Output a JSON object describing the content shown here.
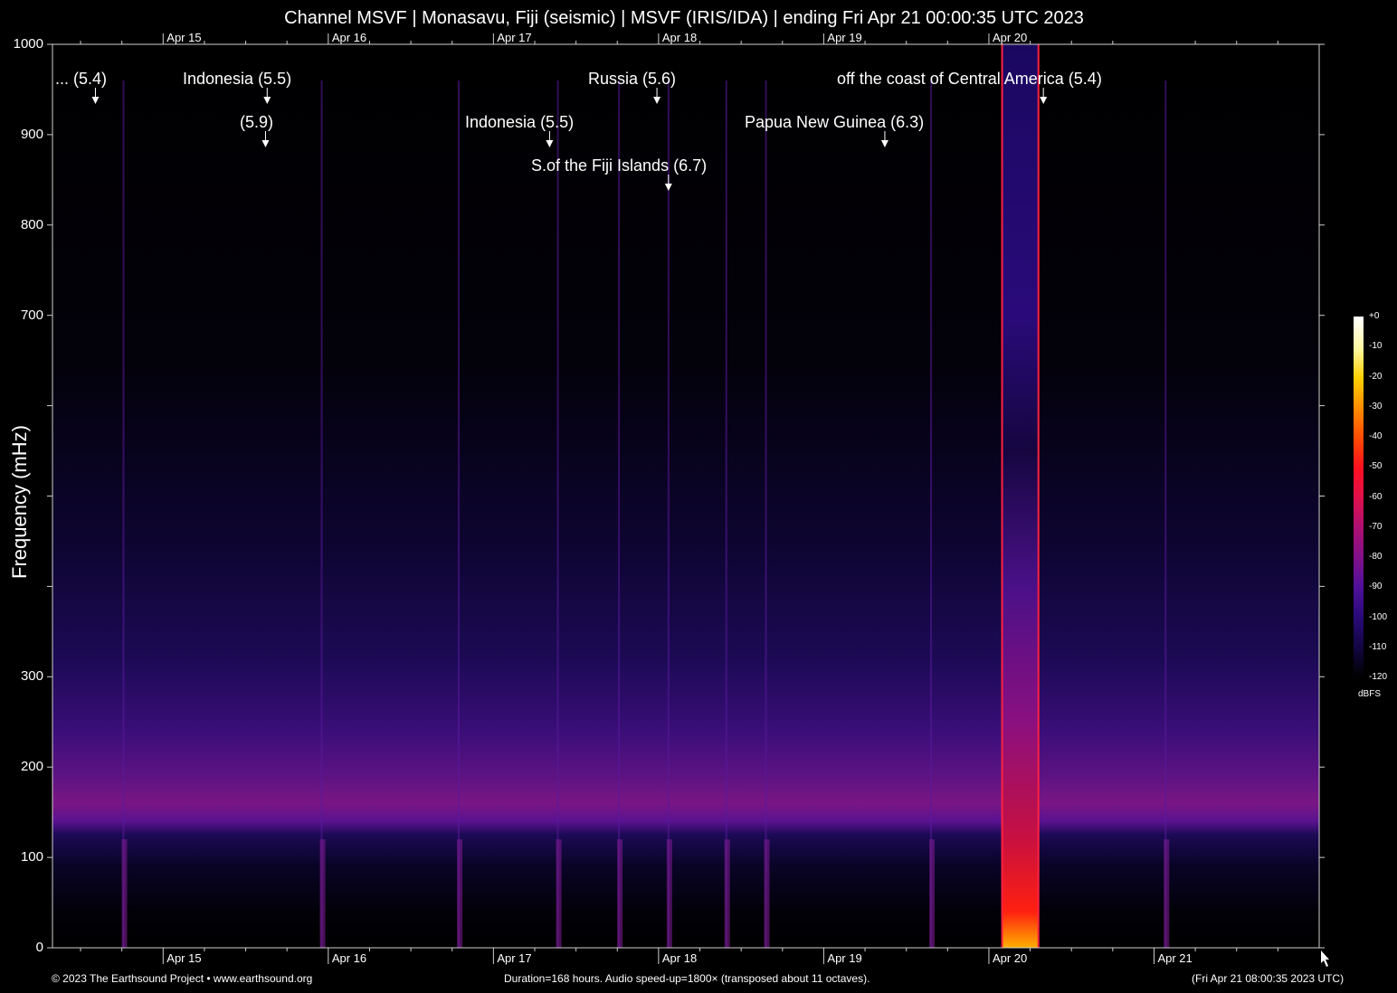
{
  "chart_data": {
    "type": "heatmap",
    "title": "Channel MSVF | Monasavu, Fiji (seismic) | MSVF (IRIS/IDA) | ending Fri Apr 21 00:00:35 UTC 2023",
    "ylabel": "Frequency (mHz)",
    "ylim": [
      0,
      1000
    ],
    "y_ticks": [
      0,
      100,
      200,
      300,
      400,
      500,
      600,
      700,
      800,
      900,
      1000
    ],
    "y_tick_labels": [
      "0",
      "100",
      "200",
      "300",
      "",
      "",
      "",
      "700",
      "800",
      "900",
      "1000"
    ],
    "x_unit": "days since Apr 14 00:00 UTC",
    "xlim": [
      -0.67,
      7.0
    ],
    "x_ticks": [
      {
        "label": "Apr 15",
        "day": 0.0
      },
      {
        "label": "Apr 16",
        "day": 1.0
      },
      {
        "label": "Apr 17",
        "day": 2.0
      },
      {
        "label": "Apr 18",
        "day": 3.0
      },
      {
        "label": "Apr 19",
        "day": 4.0
      },
      {
        "label": "Apr 20",
        "day": 5.0
      },
      {
        "label": "Apr 21",
        "day": 6.0
      }
    ],
    "events": [
      {
        "label": "... (5.4)",
        "day": -0.41,
        "row": 0
      },
      {
        "label": "Indonesia (5.5)",
        "day": 0.63,
        "row": 0
      },
      {
        "label": "(5.9)",
        "day": 0.62,
        "row": 1
      },
      {
        "label": "Indonesia (5.5)",
        "day": 2.34,
        "row": 1
      },
      {
        "label": "S.of the Fiji Islands (6.7)",
        "day": 3.06,
        "row": 2
      },
      {
        "label": "Russia (5.6)",
        "day": 2.99,
        "row": 0
      },
      {
        "label": "Papua New Guinea (6.3)",
        "day": 4.37,
        "row": 1
      },
      {
        "label": "off the coast of Central America (5.4)",
        "day": 5.33,
        "row": 0
      }
    ],
    "transient_lines_days": [
      -0.24,
      0.96,
      1.79,
      2.39,
      2.76,
      3.06,
      3.41,
      3.65,
      4.65,
      6.07
    ],
    "strong_burst_days": [
      5.08,
      5.3
    ],
    "colorbar": {
      "unit": "dBFS",
      "ticks": [
        "+0",
        "-10",
        "-20",
        "-30",
        "-40",
        "-50",
        "-60",
        "-70",
        "-80",
        "-90",
        "-100",
        "-110",
        "-120"
      ],
      "colors": [
        "#ffffff",
        "#fff8a0",
        "#ffd000",
        "#ff9000",
        "#ff5000",
        "#ff1020",
        "#e0104a",
        "#b01070",
        "#80108a",
        "#50109a",
        "#2a0a7a",
        "#120640",
        "#000000"
      ]
    }
  },
  "footer": {
    "left": "© 2023 The Earthsound Project • www.earthsound.org",
    "center": "Duration=168 hours. Audio speed-up=1800× (transposed about 11 octaves).",
    "right": "(Fri Apr 21 08:00:35 2023 UTC)"
  }
}
